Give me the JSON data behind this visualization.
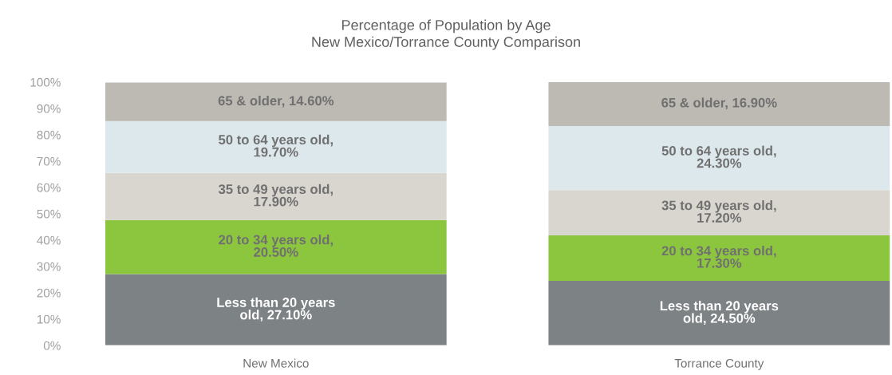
{
  "chart_data": {
    "type": "bar",
    "stacked": true,
    "title": "Percentage of Population by Age",
    "subtitle": "New Mexico/Torrance County Comparison",
    "categories": [
      "New Mexico",
      "Torrance County"
    ],
    "series": [
      {
        "color": "#7d8285",
        "values": [
          27.1,
          24.5
        ],
        "value_labels": [
          "Less than 20 years\nold, 27.10%",
          "Less than 20 years\nold, 24.50%"
        ]
      },
      {
        "color": "#8cc63f",
        "values": [
          20.5,
          17.3
        ],
        "value_labels": [
          "20 to 34 years old,\n20.50%",
          "20 to 34 years old,\n17.30%"
        ]
      },
      {
        "color": "#d9d6d0",
        "values": [
          17.9,
          17.2
        ],
        "value_labels": [
          "35 to 49 years old,\n17.90%",
          "35 to 49 years old,\n17.20%"
        ]
      },
      {
        "color": "#dde8ec",
        "values": [
          19.7,
          24.3
        ],
        "value_labels": [
          "50 to 64 years old,\n19.70%",
          "50 to 64 years old,\n24.30%"
        ]
      },
      {
        "color": "#bdb9b3",
        "values": [
          14.6,
          16.9
        ],
        "value_labels": [
          "65 & older, 14.60%",
          "65 & older, 16.90%"
        ]
      }
    ],
    "ylim": [
      0,
      100
    ],
    "yticks": [
      {
        "value": 0,
        "label": "0%"
      },
      {
        "value": 10,
        "label": "10%"
      },
      {
        "value": 20,
        "label": "20%"
      },
      {
        "value": 30,
        "label": "30%"
      },
      {
        "value": 40,
        "label": "40%"
      },
      {
        "value": 50,
        "label": "50%"
      },
      {
        "value": 60,
        "label": "60%"
      },
      {
        "value": 70,
        "label": "70%"
      },
      {
        "value": 80,
        "label": "80%"
      },
      {
        "value": 90,
        "label": "90%"
      },
      {
        "value": 100,
        "label": "100%"
      }
    ],
    "grid": false,
    "legend": false
  }
}
